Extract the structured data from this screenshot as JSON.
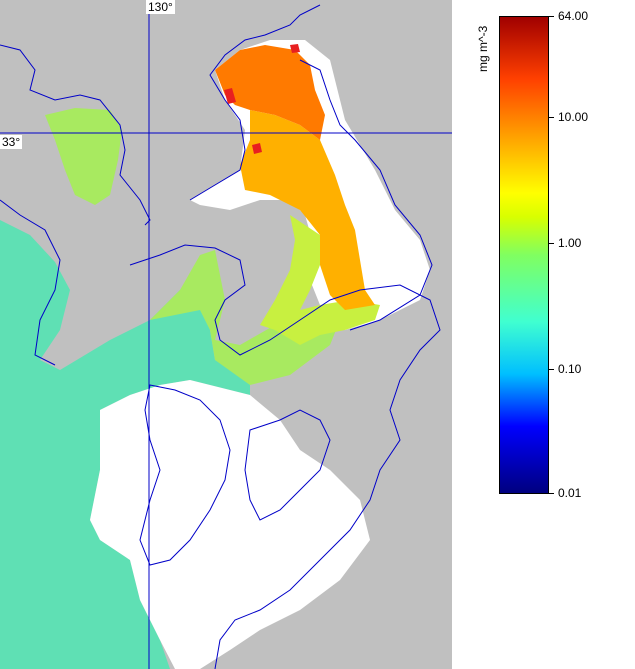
{
  "map": {
    "lon_label": "130°",
    "lat_label": "33°",
    "colors": {
      "land": "#c0c0c0",
      "no_data": "#ffffff",
      "coast": "#0000c8",
      "grid": "#0000c8",
      "open_sea": "#5fe0b4",
      "strait": "#a8ea60",
      "inner_sea": "#c8f040",
      "bay_high": "#ffb000",
      "bay_peak": "#ff7a00",
      "hotspot": "#e82020"
    }
  },
  "colorbar": {
    "unit": "mg m^-3",
    "ticks": [
      "64.00",
      "10.00",
      "1.00",
      "0.10",
      "0.01"
    ]
  }
}
